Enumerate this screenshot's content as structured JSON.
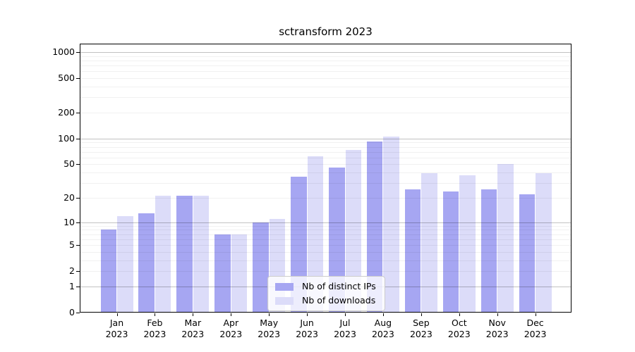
{
  "chart_data": {
    "type": "bar",
    "title": "sctransform 2023",
    "categories": [
      "Jan",
      "Feb",
      "Mar",
      "Apr",
      "May",
      "Jun",
      "Jul",
      "Aug",
      "Sep",
      "Oct",
      "Nov",
      "Dec"
    ],
    "category_year": "2023",
    "series": [
      {
        "name": "Nb of distinct IPs",
        "color": "#a6a6f2",
        "values": [
          8,
          13,
          21,
          7,
          10,
          36,
          46,
          92,
          25,
          24,
          25,
          22
        ]
      },
      {
        "name": "Nb of downloads",
        "color": "#dcdcf9",
        "values": [
          12,
          21,
          21,
          7,
          11,
          62,
          73,
          106,
          39,
          37,
          50,
          39
        ]
      }
    ],
    "xlabel": "",
    "ylabel": "",
    "yscale": "log1p",
    "ylim": [
      0,
      1250
    ],
    "y_ticks": [
      0,
      1,
      2,
      5,
      10,
      20,
      50,
      100,
      200,
      500,
      1000
    ],
    "major_gridlines": [
      1,
      10,
      100,
      1000
    ],
    "minor_gridline_multipliers": [
      2,
      3,
      4,
      5,
      6,
      7,
      8,
      9
    ],
    "minor_gridline_decades": [
      1,
      10,
      100
    ],
    "grid": true,
    "legend_position": "lower center"
  }
}
